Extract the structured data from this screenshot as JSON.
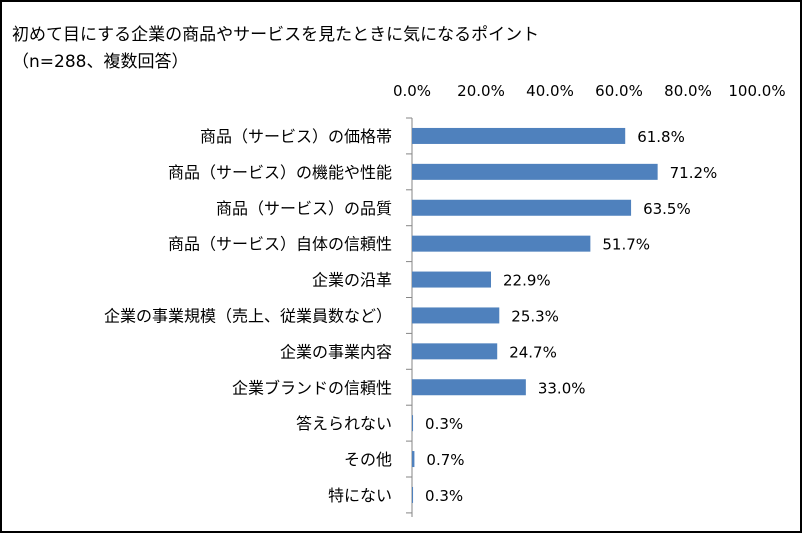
{
  "chart_data": {
    "type": "bar",
    "orientation": "horizontal",
    "title_lines": [
      "初めて目にする企業の商品やサービスを見たときに気になるポイント",
      "（n=288、複数回答）"
    ],
    "categories": [
      "商品（サービス）の価格帯",
      "商品（サービス）の機能や性能",
      "商品（サービス）の品質",
      "商品（サービス）自体の信頼性",
      "企業の沿革",
      "企業の事業規模（売上、従業員数など）",
      "企業の事業内容",
      "企業ブランドの信頼性",
      "答えられない",
      "その他",
      "特にない"
    ],
    "values": [
      61.8,
      71.2,
      63.5,
      51.7,
      22.9,
      25.3,
      24.7,
      33.0,
      0.3,
      0.7,
      0.3
    ],
    "value_labels": [
      "61.8%",
      "71.2%",
      "63.5%",
      "51.7%",
      "22.9%",
      "25.3%",
      "24.7%",
      "33.0%",
      "0.3%",
      "0.7%",
      "0.3%"
    ],
    "x_ticks": [
      "0.0%",
      "20.0%",
      "40.0%",
      "60.0%",
      "80.0%",
      "100.0%"
    ],
    "xlim": [
      0,
      100
    ],
    "x_axis_position": "top",
    "bar_color": "#4f81bd",
    "grid": false
  }
}
